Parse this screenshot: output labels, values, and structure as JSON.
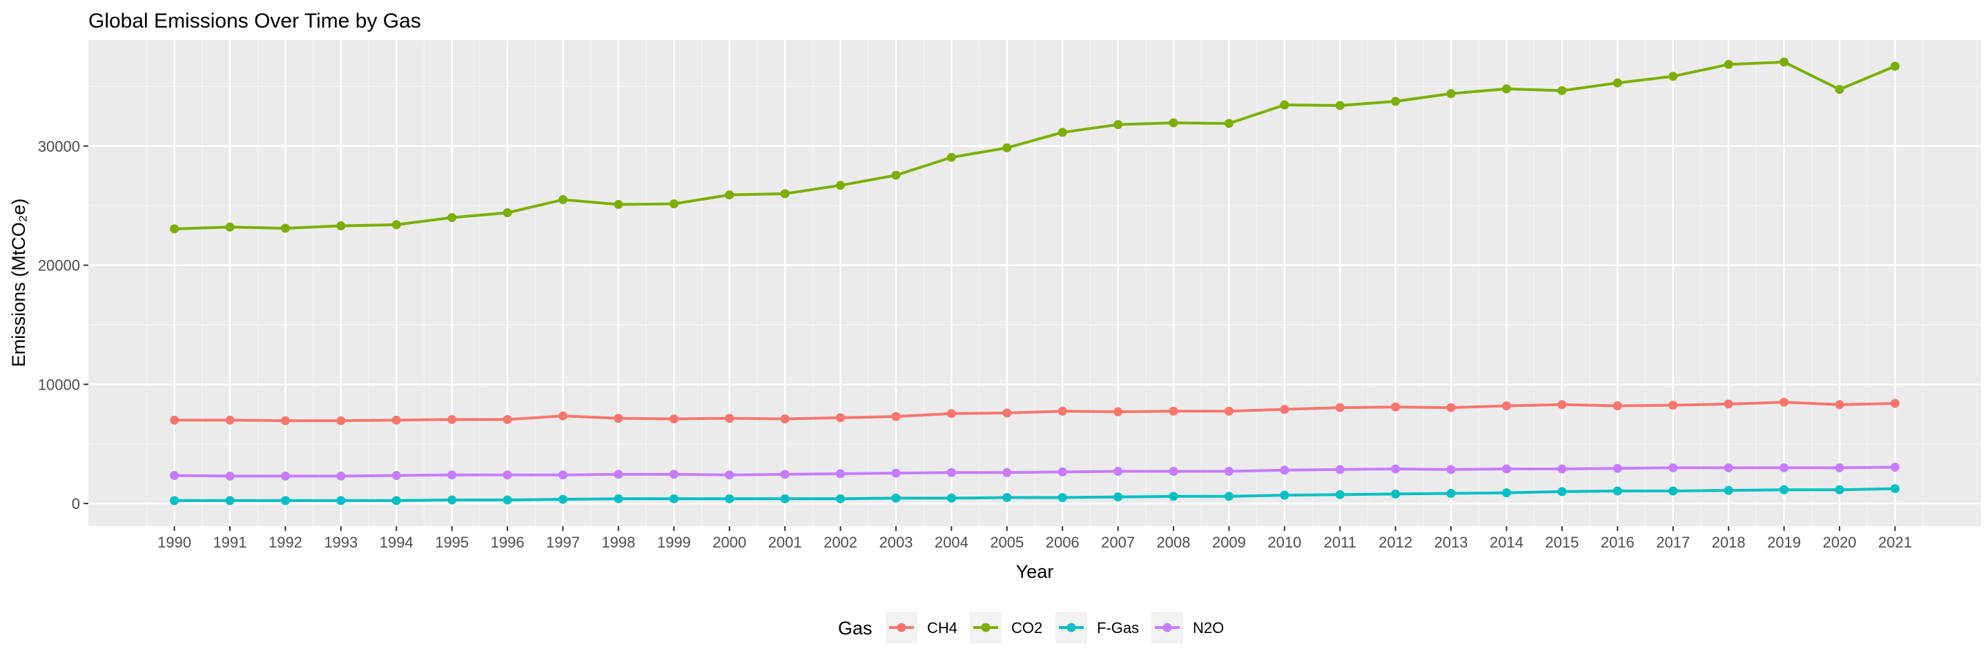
{
  "chart_data": {
    "type": "line",
    "title": "Global Emissions Over Time by Gas",
    "xlabel": "Year",
    "ylabel": "Emissions (MtCO₂e)",
    "x": [
      1990,
      1991,
      1992,
      1993,
      1994,
      1995,
      1996,
      1997,
      1998,
      1999,
      2000,
      2001,
      2002,
      2003,
      2004,
      2005,
      2006,
      2007,
      2008,
      2009,
      2010,
      2011,
      2012,
      2013,
      2014,
      2015,
      2016,
      2017,
      2018,
      2019,
      2020,
      2021
    ],
    "y_ticks": [
      0,
      10000,
      20000,
      30000
    ],
    "ylim": [
      -1900,
      38900
    ],
    "xlim": [
      1988.45,
      2022.55
    ],
    "grid": true,
    "legend_title": "Gas",
    "legend_position": "bottom",
    "series": [
      {
        "name": "CH4",
        "color": "#F8766D",
        "values": [
          7000,
          7000,
          6950,
          6950,
          7000,
          7050,
          7050,
          7350,
          7150,
          7100,
          7150,
          7100,
          7200,
          7300,
          7550,
          7600,
          7750,
          7700,
          7750,
          7750,
          7900,
          8050,
          8100,
          8050,
          8200,
          8300,
          8200,
          8250,
          8350,
          8500,
          8300,
          8400
        ]
      },
      {
        "name": "CO2",
        "color": "#7CAE00",
        "values": [
          23050,
          23200,
          23100,
          23300,
          23400,
          24000,
          24400,
          25500,
          25100,
          25150,
          25900,
          26000,
          26700,
          27550,
          29050,
          29850,
          31150,
          31800,
          31950,
          31900,
          33450,
          33400,
          33750,
          34400,
          34800,
          34650,
          35300,
          35850,
          36850,
          37050,
          34750,
          36700
        ]
      },
      {
        "name": "F-Gas",
        "color": "#00BFC4",
        "values": [
          250,
          250,
          250,
          250,
          250,
          300,
          300,
          350,
          400,
          400,
          400,
          400,
          400,
          450,
          450,
          500,
          500,
          550,
          600,
          600,
          700,
          750,
          800,
          850,
          900,
          1000,
          1050,
          1050,
          1100,
          1150,
          1150,
          1250
        ]
      },
      {
        "name": "N2O",
        "color": "#C77CFF",
        "values": [
          2350,
          2300,
          2300,
          2300,
          2350,
          2400,
          2400,
          2400,
          2450,
          2450,
          2400,
          2450,
          2500,
          2550,
          2600,
          2600,
          2650,
          2700,
          2700,
          2700,
          2800,
          2850,
          2900,
          2850,
          2900,
          2900,
          2950,
          3000,
          3000,
          3000,
          3000,
          3050
        ]
      }
    ]
  }
}
